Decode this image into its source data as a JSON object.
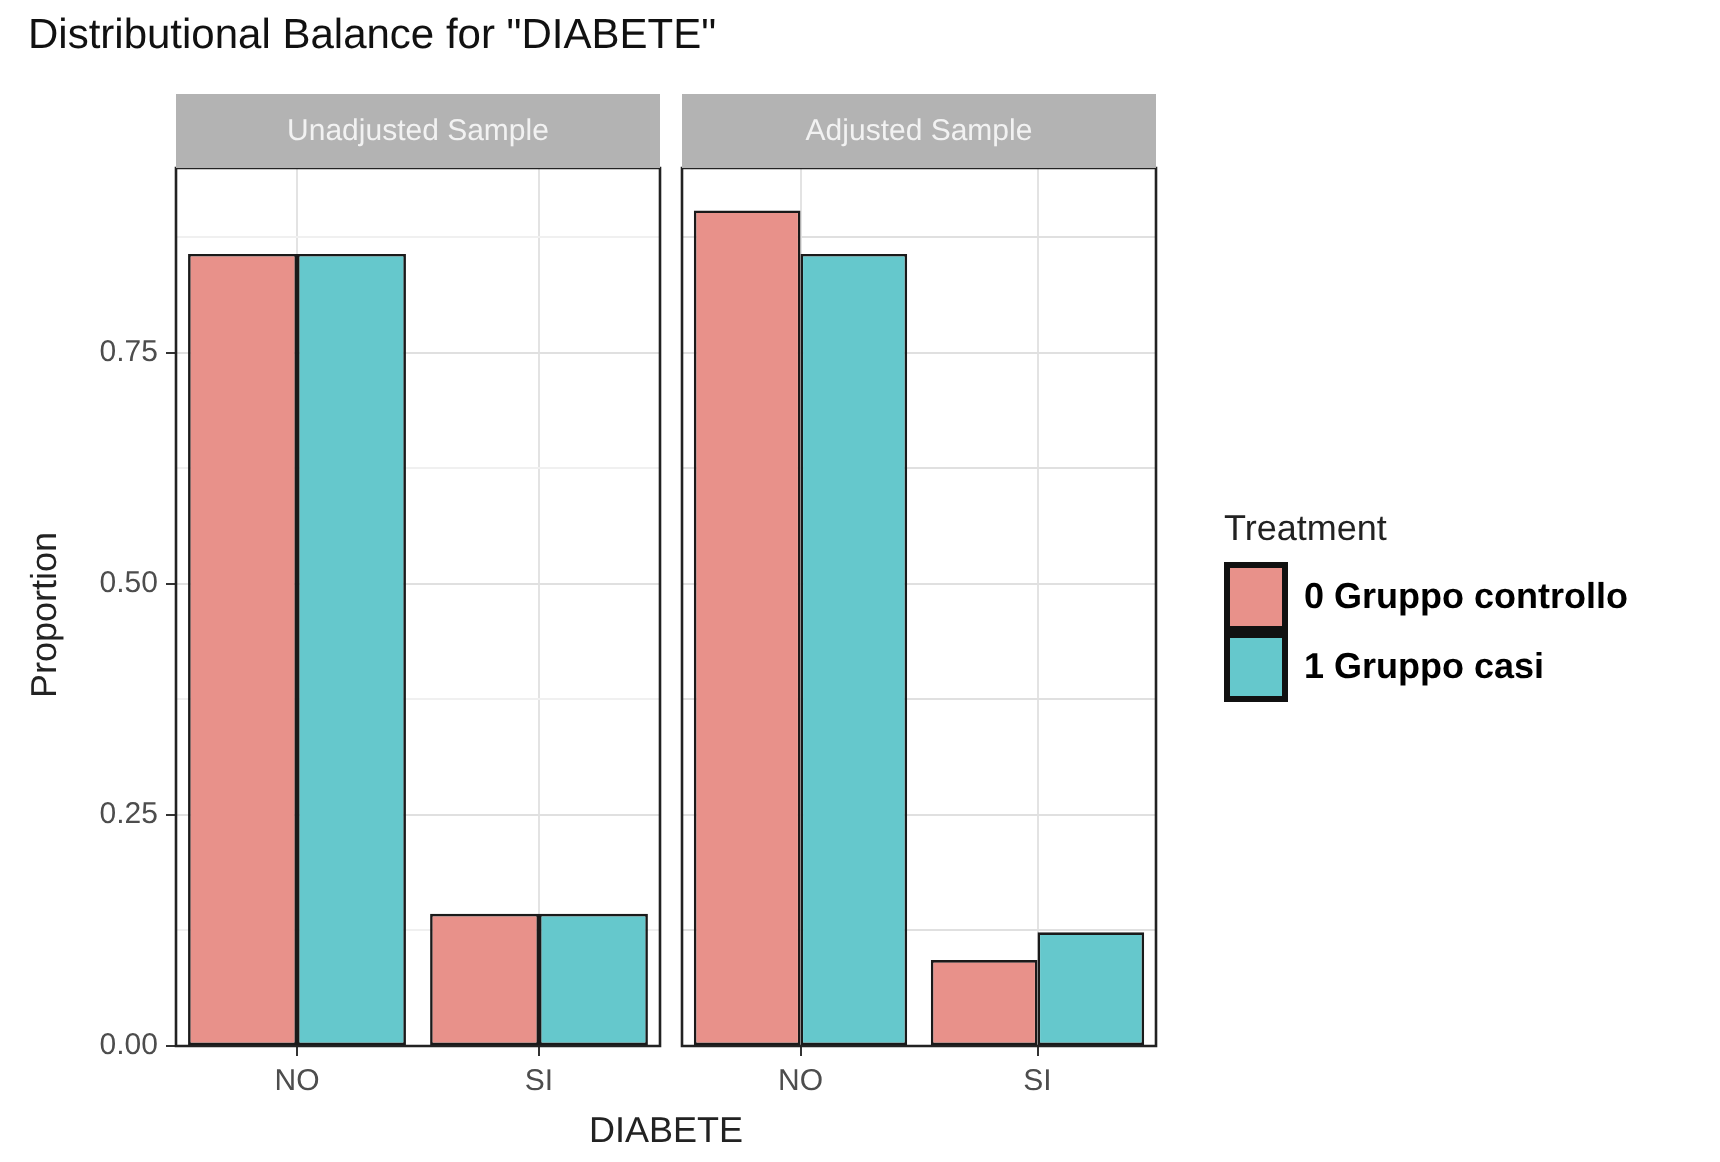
{
  "chart_data": [
    {
      "type": "bar",
      "title": "Distributional Balance for \"DIABETE\"",
      "subtitle": "Unadjusted Sample",
      "xlabel": "DIABETE",
      "ylabel": "Proportion",
      "categories": [
        "NO",
        "SI"
      ],
      "series": [
        {
          "name": "0 Gruppo controllo",
          "color": "#e8918a",
          "values": [
            0.857,
            0.143
          ]
        },
        {
          "name": "1 Gruppo casi",
          "color": "#65c8cc",
          "values": [
            0.857,
            0.143
          ]
        }
      ],
      "ylim": [
        0,
        0.95
      ],
      "yticks": [
        {
          "value": 0,
          "label": "0.00"
        },
        {
          "value": 0.125,
          "label": null
        },
        {
          "value": 0.25,
          "label": "0.25"
        },
        {
          "value": 0.375,
          "label": null
        },
        {
          "value": 0.5,
          "label": "0.50"
        },
        {
          "value": 0.625,
          "label": null
        },
        {
          "value": 0.75,
          "label": "0.75"
        },
        {
          "value": 0.875,
          "label": null
        }
      ],
      "grid": true,
      "legend": "right",
      "legend_title": "Treatment"
    },
    {
      "type": "bar",
      "subtitle": "Adjusted Sample",
      "categories": [
        "NO",
        "SI"
      ],
      "series": [
        {
          "color": "#e8918a",
          "values": [
            0.904,
            0.093
          ]
        },
        {
          "color": "#65c8cc",
          "values": [
            0.857,
            0.123
          ]
        }
      ],
      "ylim": [
        0,
        0.95
      ],
      "yticks": [
        0,
        0.125,
        0.25,
        0.375,
        0.5,
        0.625,
        0.75,
        0.875
      ],
      "grid": true,
      "tick_labels": "x"
    }
  ]
}
